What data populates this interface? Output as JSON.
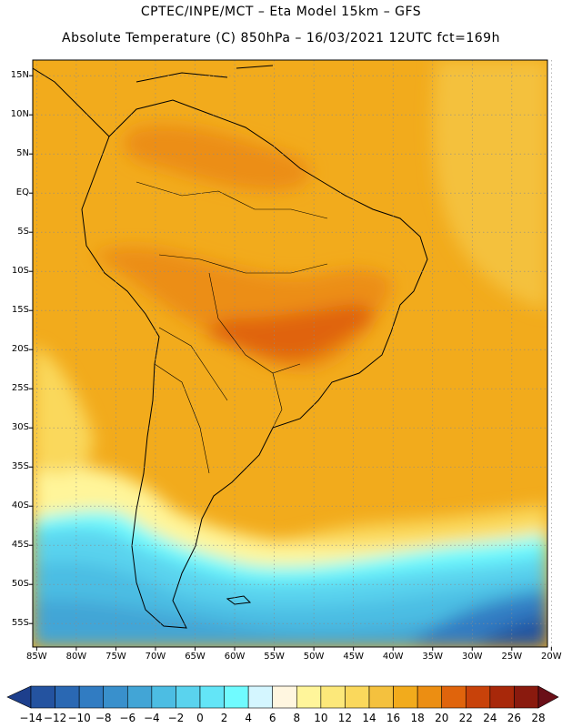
{
  "header": {
    "title_line1": "CPTEC/INPE/MCT –  Eta Model 15km – GFS",
    "title_line2": "Absolute Temperature (C) 850hPa – 16/03/2021 12UTC fct=169h"
  },
  "map": {
    "lat_labels": [
      "15N",
      "10N",
      "5N",
      "EQ",
      "5S",
      "10S",
      "15S",
      "20S",
      "25S",
      "30S",
      "35S",
      "40S",
      "45S",
      "50S",
      "55S"
    ],
    "lon_labels": [
      "85W",
      "80W",
      "75W",
      "70W",
      "65W",
      "60W",
      "55W",
      "50W",
      "45W",
      "40W",
      "35W",
      "30W",
      "25W",
      "20W"
    ],
    "lat_range": [
      17,
      -58
    ],
    "lon_range": [
      -85.5,
      -20.5
    ]
  },
  "colorbar": {
    "labels": [
      "-14",
      "-12",
      "-10",
      "-8",
      "-6",
      "-4",
      "-2",
      "0",
      "2",
      "4",
      "6",
      "8",
      "10",
      "12",
      "14",
      "16",
      "18",
      "20",
      "22",
      "24",
      "26",
      "28"
    ],
    "colors": [
      "#1d3f8c",
      "#2453a0",
      "#2a68b3",
      "#317cc2",
      "#3990cc",
      "#42a5d6",
      "#4cbde3",
      "#5ad3ee",
      "#63e5f7",
      "#70fbff",
      "#d4f6ff",
      "#fff6e0",
      "#fff59a",
      "#fce87a",
      "#fad85c",
      "#f4c13e",
      "#f2ab1c",
      "#ec8e12",
      "#e0640c",
      "#c8420a",
      "#a8280a",
      "#8a1a0e",
      "#6a0f18"
    ]
  }
}
